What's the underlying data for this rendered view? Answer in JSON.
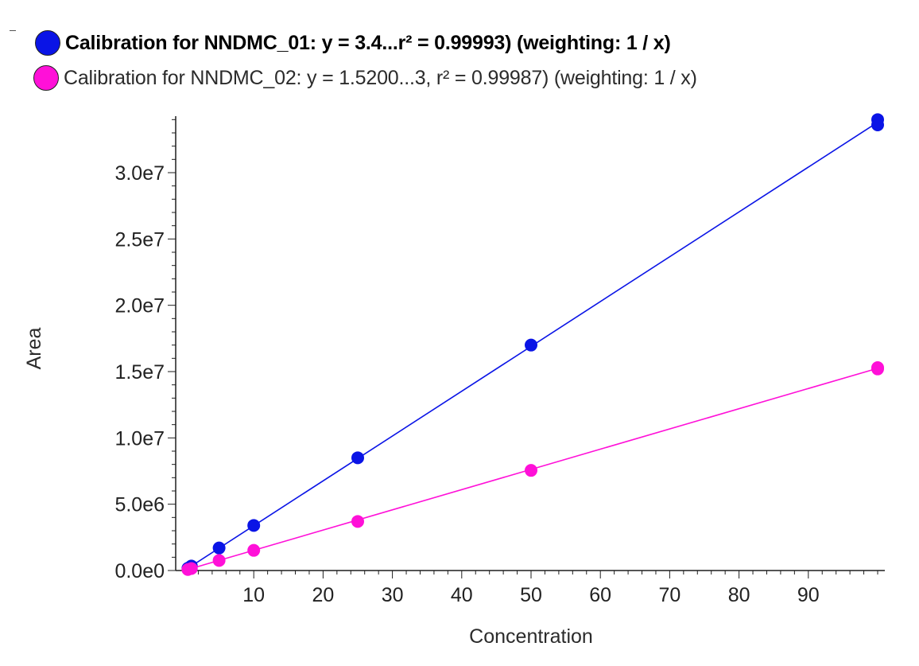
{
  "legend": {
    "items": [
      {
        "label": "Calibration for NNDMC_01: y = 3.4...r² = 0.99993)  (weighting: 1 / x)",
        "color": "#0a14e6",
        "selected": true
      },
      {
        "label": "Calibration for NNDMC_02: y = 1.5200...3, r² = 0.99987)  (weighting: 1 / x)",
        "color": "#ff10d8",
        "selected": false
      }
    ]
  },
  "chart_data": {
    "type": "scatter",
    "xlabel": "Concentration",
    "ylabel": "Area",
    "xlim": [
      0,
      100
    ],
    "ylim": [
      0,
      34500000
    ],
    "x_ticks": [
      10,
      20,
      30,
      40,
      50,
      60,
      70,
      80,
      90
    ],
    "x_tick_labels": [
      "10",
      "20",
      "30",
      "40",
      "50",
      "60",
      "70",
      "80",
      "90"
    ],
    "y_ticks": [
      0,
      5000000,
      10000000,
      15000000,
      20000000,
      25000000,
      30000000
    ],
    "y_tick_labels": [
      "0.0e0",
      "5.0e6",
      "1.0e7",
      "1.5e7",
      "2.0e7",
      "2.5e7",
      "3.0e7"
    ],
    "grid": false,
    "legend_placement": "top",
    "series": [
      {
        "color": "#0a14e6",
        "points": [
          {
            "x": 0.5,
            "y": 170000
          },
          {
            "x": 1,
            "y": 340000
          },
          {
            "x": 5,
            "y": 1700000
          },
          {
            "x": 10,
            "y": 3400000
          },
          {
            "x": 25,
            "y": 8500000
          },
          {
            "x": 50,
            "y": 17000000
          },
          {
            "x": 100,
            "y": 34000000
          },
          {
            "x": 100,
            "y": 33600000
          }
        ],
        "fit": [
          [
            0,
            0
          ],
          [
            100,
            33800000
          ]
        ]
      },
      {
        "color": "#ff10d8",
        "points": [
          {
            "x": 0.5,
            "y": 76000
          },
          {
            "x": 1,
            "y": 152000
          },
          {
            "x": 5,
            "y": 760000
          },
          {
            "x": 10,
            "y": 1520000
          },
          {
            "x": 25,
            "y": 3700000
          },
          {
            "x": 50,
            "y": 7550000
          },
          {
            "x": 100,
            "y": 15300000
          },
          {
            "x": 100,
            "y": 15200000
          }
        ],
        "fit": [
          [
            0,
            0
          ],
          [
            100,
            15250000
          ]
        ]
      }
    ]
  }
}
